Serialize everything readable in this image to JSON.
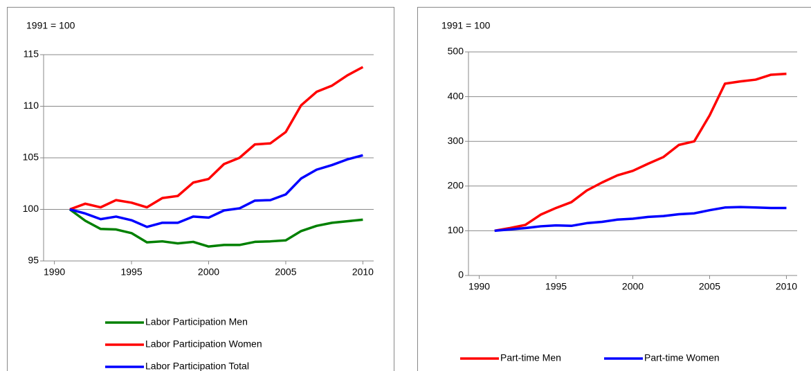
{
  "chart_data": [
    {
      "type": "line",
      "ylabel": "1991 = 100",
      "x": [
        1991,
        1992,
        1993,
        1994,
        1995,
        1996,
        1997,
        1998,
        1999,
        2000,
        2001,
        2002,
        2003,
        2004,
        2005,
        2006,
        2007,
        2008,
        2009,
        2010
      ],
      "series": [
        {
          "name": "Labor Participation Men",
          "color": "#008000",
          "values": [
            100,
            98.9,
            98.1,
            98.05,
            97.7,
            96.8,
            96.9,
            96.7,
            96.85,
            96.4,
            96.55,
            96.55,
            96.85,
            96.9,
            97.0,
            97.9,
            98.4,
            98.7,
            98.85,
            99.0
          ]
        },
        {
          "name": "Labor Participation Women",
          "color": "#ff0000",
          "values": [
            100,
            100.55,
            100.2,
            100.9,
            100.65,
            100.2,
            101.1,
            101.3,
            102.6,
            102.95,
            104.4,
            105.0,
            106.3,
            106.4,
            107.5,
            110.1,
            111.4,
            112.0,
            113.0,
            113.8
          ]
        },
        {
          "name": "Labor Participation Total",
          "color": "#0000ff",
          "values": [
            100,
            99.6,
            99.05,
            99.3,
            98.95,
            98.3,
            98.7,
            98.7,
            99.3,
            99.2,
            99.9,
            100.1,
            100.85,
            100.9,
            101.45,
            103.0,
            103.85,
            104.3,
            104.85,
            105.25
          ]
        }
      ],
      "xlim": [
        1989.3,
        2010.7
      ],
      "xticks": [
        1990,
        1995,
        2000,
        2005,
        2010
      ],
      "ylim": [
        95,
        115
      ],
      "yticks": [
        95,
        100,
        105,
        110,
        115
      ],
      "grid": true,
      "legend": "bottom"
    },
    {
      "type": "line",
      "ylabel": "1991 = 100",
      "x": [
        1991,
        1992,
        1993,
        1994,
        1995,
        1996,
        1997,
        1998,
        1999,
        2000,
        2001,
        2002,
        2003,
        2004,
        2005,
        2006,
        2007,
        2008,
        2009,
        2010
      ],
      "series": [
        {
          "name": "Part-time Men",
          "color": "#ff0000",
          "values": [
            100,
            106,
            113,
            136,
            151,
            164,
            190,
            208,
            224,
            234,
            250,
            265,
            292,
            300,
            358,
            429,
            434,
            438,
            449,
            451
          ]
        },
        {
          "name": "Part-time Women",
          "color": "#0000ff",
          "values": [
            100,
            103,
            106,
            110,
            112,
            111,
            117,
            120,
            125,
            127,
            131,
            133,
            137,
            139,
            146,
            152,
            153,
            152,
            151,
            151
          ]
        }
      ],
      "xlim": [
        1989.3,
        2010.7
      ],
      "xticks": [
        1990,
        1995,
        2000,
        2005,
        2010
      ],
      "ylim": [
        0,
        500
      ],
      "yticks": [
        0,
        100,
        200,
        300,
        400,
        500
      ],
      "grid": true,
      "legend": "bottom"
    }
  ]
}
